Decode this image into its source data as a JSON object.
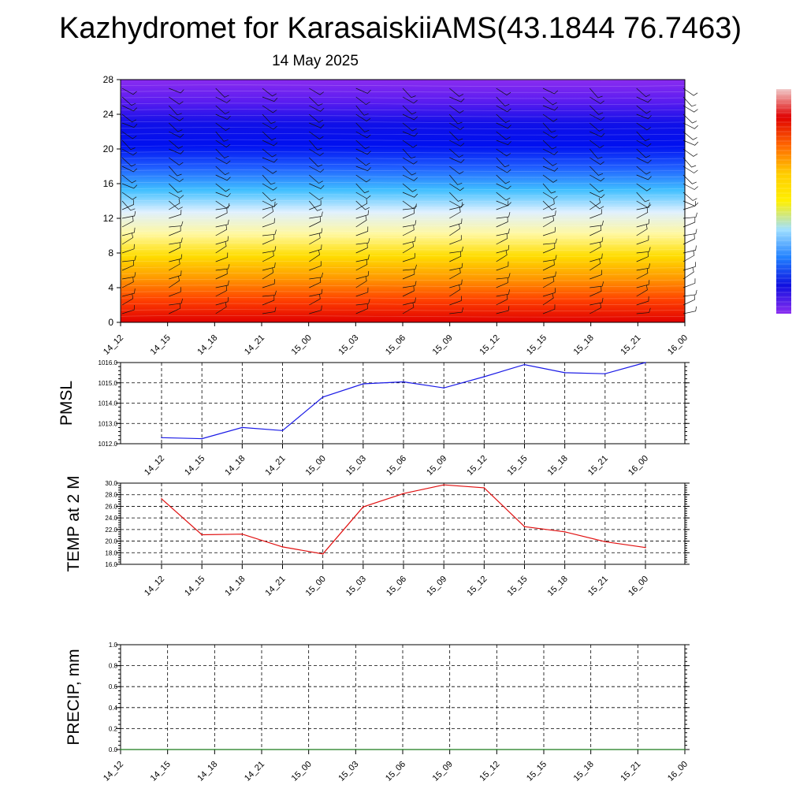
{
  "title": "Kazhydromet for KarasaiskiiAMS(43.1844 76.7463)",
  "subtitle": "14 May 2025",
  "colors": {
    "pmsl_line": "#1a1ae6",
    "temp_line": "#e01010",
    "precip_line": "#1a7a1a",
    "bands": [
      "#e00000",
      "#ff4000",
      "#ff9900",
      "#ffdd00",
      "#fff8a0",
      "#dff0ff",
      "#40bfff",
      "#2060ff",
      "#0010f0",
      "#1010e8",
      "#5a1cf0",
      "#8a2cf0"
    ]
  },
  "chart_data": [
    {
      "type": "heatmap",
      "name": "cross-section",
      "y_ticks": [
        "0",
        "4",
        "8",
        "12",
        "16",
        "20",
        "24",
        "28"
      ],
      "ylim": [
        0,
        28
      ],
      "x_ticks": [
        "14_12",
        "14_15",
        "14_18",
        "14_21",
        "15_00",
        "15_03",
        "15_06",
        "15_09",
        "15_12",
        "15_15",
        "15_18",
        "15_21",
        "16_00"
      ],
      "annotations": [
        "wind barbs",
        "colorbar"
      ],
      "colorbar": [
        "#f0c8c8",
        "#e00000",
        "#ff6600",
        "#ffcc00",
        "#fff000",
        "#a0e0ff",
        "#2080ff",
        "#1010e0",
        "#8a2cf0"
      ]
    },
    {
      "type": "line",
      "ylabel": "PMSL",
      "ylim": [
        1012.0,
        1016.0
      ],
      "y_ticks": [
        "1012.0",
        "1013.0",
        "1014.0",
        "1015.0",
        "1016.0"
      ],
      "categories": [
        "14_12",
        "14_15",
        "14_18",
        "14_21",
        "15_00",
        "15_03",
        "15_06",
        "15_09",
        "15_12",
        "15_15",
        "15_18",
        "15_21",
        "16_00"
      ],
      "values": [
        1012.3,
        1012.25,
        1012.8,
        1012.65,
        1014.3,
        1014.95,
        1015.05,
        1014.75,
        1015.3,
        1015.9,
        1015.5,
        1015.45,
        1016.0
      ]
    },
    {
      "type": "line",
      "ylabel": "TEMP at 2 M",
      "ylim": [
        16.0,
        30.0
      ],
      "y_ticks": [
        "16.0",
        "18.0",
        "20.0",
        "22.0",
        "24.0",
        "26.0",
        "28.0",
        "30.0"
      ],
      "categories": [
        "14_12",
        "14_15",
        "14_18",
        "14_21",
        "15_00",
        "15_03",
        "15_06",
        "15_09",
        "15_12",
        "15_15",
        "15_18",
        "15_21",
        "16_00"
      ],
      "values": [
        27.3,
        21.1,
        21.2,
        19.0,
        17.8,
        25.9,
        28.2,
        29.7,
        29.2,
        22.5,
        21.6,
        19.9,
        18.9
      ]
    },
    {
      "type": "line",
      "ylabel": "PRECIP, mm",
      "ylim": [
        0.0,
        1.0
      ],
      "y_ticks": [
        "0.0",
        "0.2",
        "0.4",
        "0.6",
        "0.8",
        "1.0"
      ],
      "categories": [
        "14_12",
        "14_15",
        "14_18",
        "14_21",
        "15_00",
        "15_03",
        "15_06",
        "15_09",
        "15_12",
        "15_15",
        "15_18",
        "15_21",
        "16_00"
      ],
      "values": [
        0,
        0,
        0,
        0,
        0,
        0,
        0,
        0,
        0,
        0,
        0,
        0,
        0
      ]
    }
  ]
}
